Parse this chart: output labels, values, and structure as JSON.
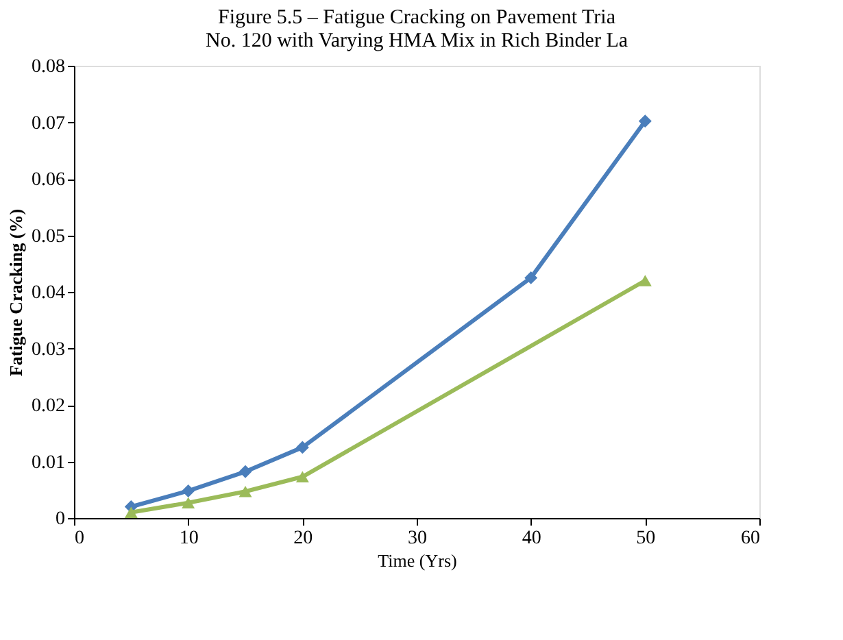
{
  "chart_data": {
    "type": "line",
    "xlabel": "Time (Yrs)",
    "ylabel": "Fatigue Cracking (%)",
    "annotations": [
      "Figure 5.5 – Fatigue Cracking on Pavement Tria",
      "No. 120 with Varying HMA Mix in Rich Binder La"
    ],
    "series": [
      {
        "color": "#4a7ebb",
        "marker": "diamond",
        "x": [
          5,
          10,
          15,
          20,
          40,
          50
        ],
        "values": [
          0.002,
          0.0048,
          0.0082,
          0.0125,
          0.0425,
          0.0702
        ]
      },
      {
        "color": "#9bbb59",
        "marker": "triangle",
        "x": [
          5,
          10,
          15,
          20,
          50
        ],
        "values": [
          0.001,
          0.0027,
          0.0047,
          0.0073,
          0.042
        ]
      }
    ],
    "xlim": [
      0,
      60
    ],
    "xticks": [
      0,
      10,
      20,
      30,
      40,
      50,
      60
    ],
    "ylim": [
      0,
      0.08
    ],
    "yticks": [
      {
        "value": 0,
        "label": "0"
      },
      0.01,
      0.02,
      0.03,
      0.04,
      0.05,
      0.06,
      0.07,
      0.08
    ],
    "grid": false,
    "line_style": "solid"
  }
}
